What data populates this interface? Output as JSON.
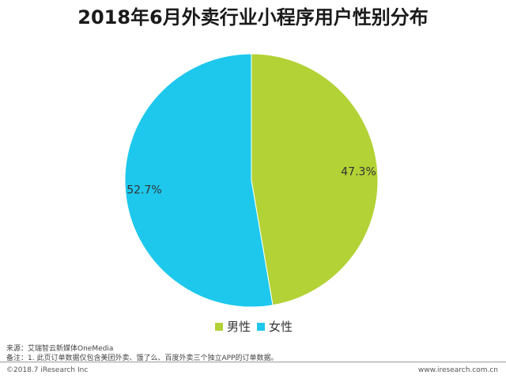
{
  "chart_data": {
    "type": "pie",
    "title": "2018年6月外卖行业小程序用户性别分布",
    "slices": [
      {
        "label": "男性",
        "value": 47.3,
        "value_label": "47.3%",
        "color": "#b2d235"
      },
      {
        "label": "女性",
        "value": 52.7,
        "value_label": "52.7%",
        "color": "#1ec8ed"
      }
    ],
    "start": "top",
    "direction": "clockwise",
    "legend_position": "bottom"
  },
  "notes": {
    "source": "来源：艾瑞智云新媒体OneMedia",
    "remark": "备注：1. 此页订单数据仅包含美团外卖、饿了么、百度外卖三个独立APP的订单数据。"
  },
  "footer": {
    "copyright": "©2018.7 iResearch Inc",
    "website": "www.iresearch.com.cn"
  }
}
